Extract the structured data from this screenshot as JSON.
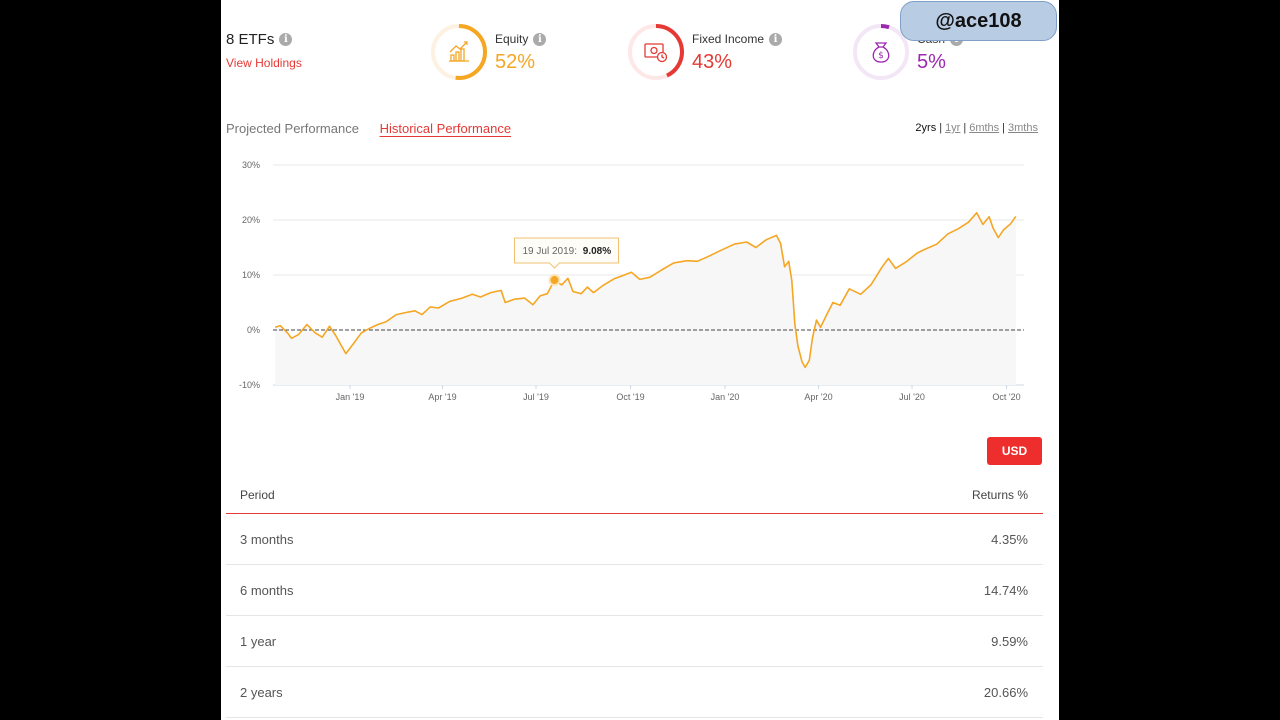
{
  "summary": {
    "etf_count_label": "8 ETFs",
    "view_holdings": "View Holdings"
  },
  "allocations": [
    {
      "name": "Equity",
      "percent": "52%",
      "fraction": 0.52,
      "color": "#f5a623",
      "track": "#fdf1e2",
      "icon": "chart-growth-icon"
    },
    {
      "name": "Fixed Income",
      "percent": "43%",
      "fraction": 0.43,
      "color": "#e53935",
      "track": "#fde7e7",
      "icon": "money-cash-icon"
    },
    {
      "name": "Cash",
      "percent": "5%",
      "fraction": 0.05,
      "color": "#9c27b0",
      "track": "#f3e6f6",
      "icon": "money-bag-icon"
    }
  ],
  "watermark": "@ace108",
  "tabs": [
    {
      "label": "Projected Performance",
      "active": false
    },
    {
      "label": "Historical Performance",
      "active": true
    }
  ],
  "time_ranges": [
    {
      "label": "2yrs",
      "active": true
    },
    {
      "label": "1yr",
      "active": false
    },
    {
      "label": "6mths",
      "active": false
    },
    {
      "label": "3mths",
      "active": false
    }
  ],
  "tooltip": {
    "date": "19 Jul 2019:",
    "value": "9.08%"
  },
  "currency_button": "USD",
  "table": {
    "headers": {
      "period": "Period",
      "returns": "Returns %"
    },
    "rows": [
      {
        "period": "3 months",
        "returns": "4.35%"
      },
      {
        "period": "6 months",
        "returns": "14.74%"
      },
      {
        "period": "1 year",
        "returns": "9.59%"
      },
      {
        "period": "2 years",
        "returns": "20.66%"
      }
    ]
  },
  "chart_data": {
    "type": "line",
    "ylabel_ticks": [
      "30%",
      "20%",
      "10%",
      "0%",
      "-10%"
    ],
    "ylim": [
      -10,
      30
    ],
    "xlim": [
      "2018-10-18",
      "2020-10-18"
    ],
    "x_ticks": [
      {
        "label": "Jan '19",
        "date": "2019-01-01"
      },
      {
        "label": "Apr '19",
        "date": "2019-04-01"
      },
      {
        "label": "Jul '19",
        "date": "2019-07-01"
      },
      {
        "label": "Oct '19",
        "date": "2019-10-01"
      },
      {
        "label": "Jan '20",
        "date": "2020-01-01"
      },
      {
        "label": "Apr '20",
        "date": "2020-04-01"
      },
      {
        "label": "Jul '20",
        "date": "2020-07-01"
      },
      {
        "label": "Oct '20",
        "date": "2020-10-01"
      }
    ],
    "grid": true,
    "reference_line": 0,
    "series": [
      {
        "color": "#f5a623",
        "points": [
          [
            "2018-10-20",
            0.5
          ],
          [
            "2018-10-25",
            0.8
          ],
          [
            "2018-11-01",
            -0.5
          ],
          [
            "2018-11-05",
            -1.5
          ],
          [
            "2018-11-12",
            -0.8
          ],
          [
            "2018-11-20",
            1.0
          ],
          [
            "2018-11-28",
            -0.5
          ],
          [
            "2018-12-05",
            -1.3
          ],
          [
            "2018-12-12",
            0.7
          ],
          [
            "2018-12-18",
            -1.0
          ],
          [
            "2018-12-24",
            -3.0
          ],
          [
            "2018-12-28",
            -4.3
          ],
          [
            "2019-01-05",
            -2.3
          ],
          [
            "2019-01-12",
            -0.5
          ],
          [
            "2019-01-20",
            0.3
          ],
          [
            "2019-01-28",
            1.0
          ],
          [
            "2019-02-05",
            1.5
          ],
          [
            "2019-02-15",
            2.8
          ],
          [
            "2019-02-25",
            3.2
          ],
          [
            "2019-03-05",
            3.5
          ],
          [
            "2019-03-12",
            2.8
          ],
          [
            "2019-03-20",
            4.2
          ],
          [
            "2019-03-28",
            4.0
          ],
          [
            "2019-04-08",
            5.2
          ],
          [
            "2019-04-20",
            5.8
          ],
          [
            "2019-04-30",
            6.5
          ],
          [
            "2019-05-08",
            6.0
          ],
          [
            "2019-05-18",
            6.8
          ],
          [
            "2019-05-28",
            7.2
          ],
          [
            "2019-06-01",
            5.0
          ],
          [
            "2019-06-10",
            5.6
          ],
          [
            "2019-06-20",
            5.8
          ],
          [
            "2019-06-28",
            4.6
          ],
          [
            "2019-07-05",
            6.2
          ],
          [
            "2019-07-12",
            6.6
          ],
          [
            "2019-07-19",
            9.08
          ],
          [
            "2019-07-26",
            8.2
          ],
          [
            "2019-08-01",
            9.4
          ],
          [
            "2019-08-06",
            7.0
          ],
          [
            "2019-08-14",
            6.6
          ],
          [
            "2019-08-20",
            7.8
          ],
          [
            "2019-08-26",
            6.8
          ],
          [
            "2019-09-05",
            8.2
          ],
          [
            "2019-09-15",
            9.3
          ],
          [
            "2019-09-25",
            10.0
          ],
          [
            "2019-10-02",
            10.5
          ],
          [
            "2019-10-10",
            9.2
          ],
          [
            "2019-10-20",
            9.6
          ],
          [
            "2019-11-01",
            11.0
          ],
          [
            "2019-11-12",
            12.2
          ],
          [
            "2019-11-25",
            12.6
          ],
          [
            "2019-12-05",
            12.5
          ],
          [
            "2019-12-15",
            13.3
          ],
          [
            "2019-12-28",
            14.5
          ],
          [
            "2020-01-10",
            15.6
          ],
          [
            "2020-01-22",
            16.0
          ],
          [
            "2020-01-31",
            15.0
          ],
          [
            "2020-02-10",
            16.4
          ],
          [
            "2020-02-20",
            17.2
          ],
          [
            "2020-02-24",
            15.8
          ],
          [
            "2020-02-28",
            11.5
          ],
          [
            "2020-03-03",
            12.5
          ],
          [
            "2020-03-06",
            9.0
          ],
          [
            "2020-03-09",
            1.0
          ],
          [
            "2020-03-12",
            -3.0
          ],
          [
            "2020-03-16",
            -5.8
          ],
          [
            "2020-03-19",
            -6.8
          ],
          [
            "2020-03-23",
            -5.5
          ],
          [
            "2020-03-26",
            -1.5
          ],
          [
            "2020-03-30",
            1.8
          ],
          [
            "2020-04-03",
            0.5
          ],
          [
            "2020-04-09",
            2.8
          ],
          [
            "2020-04-15",
            5.0
          ],
          [
            "2020-04-22",
            4.5
          ],
          [
            "2020-05-01",
            7.5
          ],
          [
            "2020-05-12",
            6.5
          ],
          [
            "2020-05-22",
            8.2
          ],
          [
            "2020-06-02",
            11.5
          ],
          [
            "2020-06-08",
            13.0
          ],
          [
            "2020-06-15",
            11.2
          ],
          [
            "2020-06-26",
            12.5
          ],
          [
            "2020-07-06",
            14.0
          ],
          [
            "2020-07-15",
            14.8
          ],
          [
            "2020-07-25",
            15.6
          ],
          [
            "2020-08-05",
            17.5
          ],
          [
            "2020-08-15",
            18.4
          ],
          [
            "2020-08-25",
            19.6
          ],
          [
            "2020-09-02",
            21.3
          ],
          [
            "2020-09-08",
            19.2
          ],
          [
            "2020-09-14",
            20.6
          ],
          [
            "2020-09-18",
            18.5
          ],
          [
            "2020-09-23",
            16.8
          ],
          [
            "2020-09-28",
            18.2
          ],
          [
            "2020-10-05",
            19.3
          ],
          [
            "2020-10-10",
            20.66
          ]
        ]
      }
    ]
  }
}
